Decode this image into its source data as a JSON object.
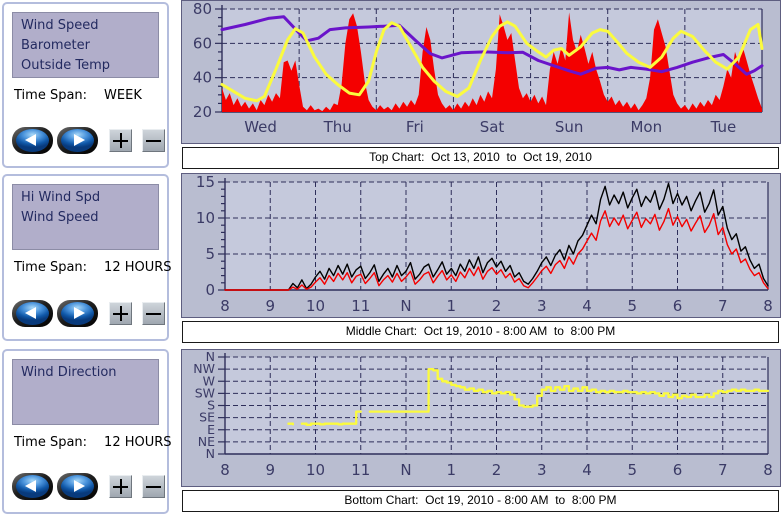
{
  "panels": [
    {
      "legend": [
        "Wind Speed",
        "Barometer",
        "Outside Temp"
      ],
      "time_span_label": "Time Span:",
      "time_span": "WEEK"
    },
    {
      "legend": [
        "Hi Wind Spd",
        "Wind Speed"
      ],
      "time_span_label": "Time Span:",
      "time_span": "12 HOURS"
    },
    {
      "legend": [
        "Wind Direction"
      ],
      "time_span_label": "Time Span:",
      "time_span": "12 HOURS"
    }
  ],
  "captions": {
    "top": "Top Chart:  Oct 13, 2010  to  Oct 19, 2010",
    "middle": "Middle Chart:  Oct 19, 2010 - 8:00 AM  to  8:00 PM",
    "bottom": "Bottom Chart:  Oct 19, 2010 - 8:00 AM  to  8:00 PM"
  },
  "colors": {
    "panel_bg": "#b9bdd0",
    "plot_bg": "#c5c9dc",
    "grid": "#2e2e5a",
    "axis_text": "#3b3b66",
    "red": "#f40000",
    "yellow": "#fbfb3e",
    "purple": "#6a14ca",
    "black": "#000000",
    "legend_box_bg": "#b1aeca",
    "legend_text": "#232a60"
  },
  "chart_data": [
    {
      "type": "area+line",
      "title": "Week chart: Wind Speed, Barometer, Outside Temp",
      "xlim": [
        0,
        7
      ],
      "ylim": [
        20,
        80
      ],
      "xtick_pos": [
        0.5,
        1.5,
        2.5,
        3.5,
        4.5,
        5.5,
        6.5
      ],
      "xtick_labels": [
        "Wed",
        "Thu",
        "Fri",
        "Sat",
        "Sun",
        "Mon",
        "Tue"
      ],
      "xgrid": [
        1,
        2,
        3,
        4,
        5,
        6
      ],
      "ytick_pos": [
        20,
        40,
        60,
        80
      ],
      "ytick_labels": [
        "20",
        "40",
        "60",
        "80"
      ],
      "ygrid": [
        40,
        60,
        80
      ],
      "series": [
        {
          "name": "wind-speed",
          "type": "area",
          "color": "#f40000",
          "t0": 0,
          "dt": 0.05,
          "values": [
            34,
            27,
            31,
            24,
            28,
            23,
            26,
            22,
            25,
            21,
            27,
            24,
            30,
            26,
            31,
            28,
            49,
            50,
            44,
            50,
            36,
            23,
            21,
            24,
            21,
            22,
            20.5,
            23,
            21,
            25,
            24,
            36,
            60,
            74,
            77.5,
            70,
            55,
            38,
            27,
            23,
            21,
            24,
            21.5,
            23,
            21,
            25,
            22,
            26,
            23,
            27,
            24,
            30,
            55,
            69.5,
            62,
            45,
            30,
            25,
            22,
            24,
            21,
            25,
            22,
            26,
            23,
            28,
            24,
            30,
            26,
            32,
            28,
            45,
            77,
            70,
            62,
            66,
            50,
            34,
            28,
            31,
            26,
            30,
            25,
            29,
            24,
            45,
            55,
            48,
            58,
            50,
            78,
            62,
            55,
            65,
            57,
            48,
            55,
            45,
            38,
            30,
            26,
            29,
            24,
            27,
            23,
            26,
            22,
            25,
            21,
            24,
            28,
            40,
            68,
            74,
            66,
            58,
            44,
            30,
            25,
            22,
            24,
            21,
            25,
            22,
            26,
            23,
            27,
            24,
            30,
            27,
            35,
            45,
            40,
            55,
            48,
            58,
            50,
            42,
            35,
            28,
            22
          ]
        },
        {
          "name": "barometer",
          "type": "line",
          "color": "#6a14ca",
          "x": [
            0,
            0.3,
            0.6,
            0.8,
            1.0,
            1.1,
            1.25,
            1.4,
            1.6,
            1.9,
            2.1,
            2.3,
            2.5,
            2.7,
            2.85,
            3.1,
            3.4,
            3.7,
            3.9,
            4.1,
            4.3,
            4.5,
            4.65,
            4.85,
            5.0,
            5.15,
            5.3,
            5.5,
            5.7,
            5.9,
            6.1,
            6.3,
            6.5,
            6.65,
            6.8,
            6.9,
            7.0
          ],
          "y": [
            68,
            71,
            74.5,
            75.5,
            66,
            61.5,
            63,
            68,
            69,
            69.5,
            70,
            70.5,
            62,
            54,
            51.5,
            54.5,
            55,
            54.5,
            54.8,
            50,
            47,
            44,
            42,
            45.5,
            46,
            44.5,
            46,
            45,
            43.5,
            46,
            49,
            51.5,
            53.5,
            48,
            42,
            44,
            47
          ]
        },
        {
          "name": "outside-temp",
          "type": "line",
          "color": "#fbfb3e",
          "x": [
            0,
            0.15,
            0.3,
            0.45,
            0.55,
            0.7,
            0.85,
            0.95,
            1.05,
            1.2,
            1.35,
            1.5,
            1.65,
            1.78,
            1.9,
            2.0,
            2.1,
            2.2,
            2.3,
            2.45,
            2.6,
            2.75,
            2.9,
            3.05,
            3.2,
            3.35,
            3.5,
            3.6,
            3.7,
            3.8,
            3.95,
            4.1,
            4.2,
            4.3,
            4.4,
            4.5,
            4.65,
            4.8,
            4.9,
            5.0,
            5.1,
            5.25,
            5.4,
            5.55,
            5.7,
            5.85,
            5.95,
            6.1,
            6.25,
            6.4,
            6.55,
            6.7,
            6.85,
            6.95,
            7.0
          ],
          "y": [
            36,
            32,
            28,
            26.5,
            29,
            45,
            62,
            68.5,
            66,
            52,
            42,
            36,
            31,
            30,
            38,
            55,
            68,
            72,
            70,
            58,
            46,
            38,
            32,
            29,
            34,
            50,
            64,
            70,
            72.5,
            70,
            60,
            55,
            52,
            56,
            57,
            53,
            58,
            66,
            68,
            67,
            62,
            54,
            49,
            46,
            52,
            63,
            67,
            64,
            56,
            49,
            45,
            52,
            68,
            71,
            57
          ]
        }
      ]
    },
    {
      "type": "line",
      "title": "12-hour chart: Hi Wind Spd, Wind Speed",
      "xlim": [
        0,
        12
      ],
      "ylim": [
        0,
        15
      ],
      "xtick_pos": [
        0,
        1,
        2,
        3,
        4,
        5,
        6,
        7,
        8,
        9,
        10,
        11,
        12
      ],
      "xtick_labels": [
        "8",
        "9",
        "10",
        "11",
        "N",
        "1",
        "2",
        "3",
        "4",
        "5",
        "6",
        "7",
        "8"
      ],
      "xgrid": [
        1,
        2,
        3,
        4,
        5,
        6,
        7,
        8,
        9,
        10,
        11
      ],
      "ytick_pos": [
        0,
        5,
        10,
        15
      ],
      "ytick_labels": [
        "0",
        "5",
        "10",
        "15"
      ],
      "ygrid": [
        5,
        10,
        15
      ],
      "series": [
        {
          "name": "hi-wind-spd",
          "type": "line",
          "color": "#000000",
          "t0": 0,
          "dt": 0.1,
          "values": [
            0,
            0,
            0,
            0,
            0,
            0,
            0,
            0,
            0,
            0,
            0,
            0,
            0,
            0,
            0,
            0.9,
            0.3,
            1.4,
            0.2,
            0.8,
            1.8,
            2.6,
            1.5,
            3,
            2,
            3.4,
            2.2,
            3.6,
            1.8,
            2.8,
            3.3,
            1.6,
            2.4,
            3.5,
            1.2,
            2.2,
            3,
            1.8,
            3.4,
            2,
            2.6,
            3.8,
            1.5,
            2.2,
            3.2,
            3.6,
            1.8,
            2.8,
            3.9,
            2.2,
            3,
            2,
            3.6,
            2.6,
            4.2,
            3,
            4.6,
            2.4,
            3.8,
            4.4,
            3.2,
            4,
            2.6,
            3.4,
            1.8,
            2.4,
            1.2,
            0.8,
            1.6,
            2.6,
            3.8,
            4.6,
            3.4,
            4.8,
            5.6,
            4.2,
            6.2,
            5,
            6.8,
            7.6,
            9,
            10.4,
            9.2,
            12.6,
            14.4,
            11.8,
            13.2,
            12,
            13.6,
            11.4,
            12.8,
            14,
            11.6,
            13,
            12.2,
            13.8,
            11.2,
            12.6,
            14.8,
            12,
            13.4,
            11.8,
            13,
            11,
            12.4,
            13.6,
            10.8,
            12,
            13.9,
            10.4,
            11.6,
            8.6,
            7,
            7.8,
            5.4,
            6,
            4.2,
            3,
            3.6,
            1.6,
            0.6
          ]
        },
        {
          "name": "wind-speed",
          "type": "line",
          "color": "#f40000",
          "t0": 0,
          "dt": 0.1,
          "values": [
            0,
            0,
            0,
            0,
            0,
            0,
            0,
            0,
            0,
            0,
            0,
            0,
            0,
            0,
            0,
            0.4,
            0.1,
            0.7,
            0.1,
            0.4,
            1.1,
            1.7,
            0.8,
            2,
            1.2,
            2.3,
            1.4,
            2.4,
            1,
            1.9,
            2.2,
            0.9,
            1.6,
            2.4,
            0.6,
            1.4,
            2,
            1.1,
            2.3,
            1.2,
            1.8,
            2.6,
            0.8,
            1.4,
            2.2,
            2.5,
            1,
            1.9,
            2.7,
            1.4,
            2.1,
            1.2,
            2.5,
            1.7,
            3,
            2,
            3.2,
            1.5,
            2.6,
            3.1,
            2.2,
            2.8,
            1.7,
            2.3,
            1.1,
            1.6,
            0.6,
            0.3,
            1,
            1.8,
            2.7,
            3.3,
            2.3,
            3.5,
            4.1,
            3,
            4.6,
            3.6,
            5,
            5.7,
            6.8,
            7.9,
            6.9,
            9.6,
            11,
            8.8,
            10,
            9,
            10.4,
            8.5,
            9.7,
            10.8,
            8.7,
            9.9,
            9.2,
            10.5,
            8.3,
            9.5,
            11.3,
            9,
            10.2,
            8.8,
            9.8,
            8.2,
            9.3,
            10.3,
            8,
            9,
            10.6,
            7.7,
            8.7,
            6.3,
            5,
            5.7,
            3.8,
            4.3,
            2.9,
            2,
            2.4,
            1,
            0.2
          ]
        }
      ]
    },
    {
      "type": "step-line",
      "title": "12-hour chart: Wind Direction",
      "xlim": [
        0,
        12
      ],
      "ylim": [
        0,
        8
      ],
      "xtick_pos": [
        0,
        1,
        2,
        3,
        4,
        5,
        6,
        7,
        8,
        9,
        10,
        11,
        12
      ],
      "xtick_labels": [
        "8",
        "9",
        "10",
        "11",
        "N",
        "1",
        "2",
        "3",
        "4",
        "5",
        "6",
        "7",
        "8"
      ],
      "xgrid": [
        1,
        2,
        3,
        4,
        5,
        6,
        7,
        8,
        9,
        10,
        11
      ],
      "ytick_pos": [
        8,
        7,
        6,
        5,
        4,
        3,
        2,
        1,
        0
      ],
      "ytick_labels": [
        "N",
        "NW",
        "W",
        "SW",
        "S",
        "SE",
        "E",
        "NE",
        "N"
      ],
      "ygrid": [
        1,
        2,
        3,
        4,
        5,
        6,
        7,
        8
      ],
      "series": [
        {
          "name": "wind-direction",
          "type": "line",
          "color": "#fbfb3e",
          "t0": 0,
          "dt": 0.1,
          "values": [
            null,
            null,
            null,
            null,
            null,
            null,
            null,
            null,
            null,
            null,
            null,
            null,
            null,
            null,
            2.5,
            2.45,
            null,
            2.5,
            2.4,
            2.5,
            2.5,
            2.45,
            2.5,
            2.5,
            2.5,
            2.45,
            2.5,
            2.5,
            2.5,
            3.5,
            3.5,
            null,
            3.5,
            3.5,
            3.5,
            3.5,
            3.5,
            3.5,
            3.5,
            3.5,
            3.5,
            3.5,
            3.5,
            3.5,
            3.5,
            7,
            6.9,
            6.2,
            6,
            5.9,
            5.7,
            5.6,
            5.5,
            5.3,
            5.4,
            5.2,
            5.3,
            5.1,
            5.2,
            5,
            5.1,
            5,
            5.1,
            4.9,
            4.5,
            4,
            3.9,
            3.9,
            4,
            4.8,
            5.3,
            5.5,
            5.2,
            5.5,
            5.3,
            5.6,
            5.2,
            5.4,
            5.2,
            5.5,
            5.2,
            5.3,
            5.1,
            5.2,
            5.1,
            5.2,
            5.1,
            5.1,
            5.2,
            5.1,
            5.1,
            5,
            5.1,
            5,
            5.1,
            5,
            4.8,
            5,
            4.7,
            4.9,
            4.6,
            4.8,
            4.7,
            4.9,
            4.7,
            4.7,
            4.9,
            4.7,
            5,
            5.2,
            5.1,
            5.2,
            5.3,
            5.2,
            5.3,
            5.2,
            5.2,
            5.3,
            5.2,
            5.2,
            5.2
          ]
        }
      ]
    }
  ]
}
